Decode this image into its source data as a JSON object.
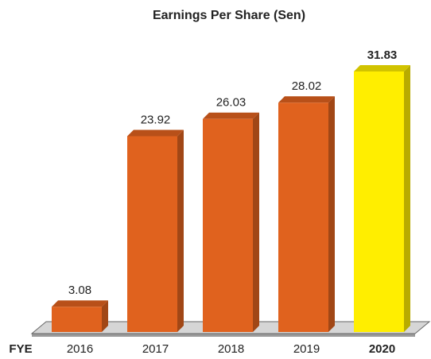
{
  "chart_data": {
    "type": "bar3d",
    "title": "Earnings Per Share (Sen)",
    "x_label": "FYE",
    "categories": [
      "2016",
      "2017",
      "2018",
      "2019",
      "2020"
    ],
    "values": [
      3.08,
      23.92,
      26.03,
      28.02,
      31.83
    ],
    "colors": [
      "#e0621e",
      "#e0621e",
      "#e0621e",
      "#e0621e",
      "#ffee00"
    ]
  }
}
